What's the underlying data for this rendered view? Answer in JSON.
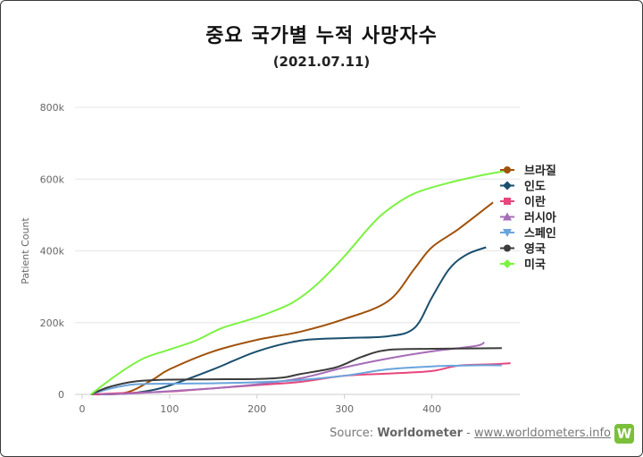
{
  "header": {
    "title": "중요 국가별 누적 사망자수",
    "subtitle": "(2021.07.11)"
  },
  "footer": {
    "source_prefix": "Source: ",
    "source_name": "Worldometer",
    "separator": " - ",
    "source_link": "www.worldometers.info",
    "logo_letter": "W"
  },
  "chart_data": {
    "type": "line",
    "title": "중요 국가별 누적 사망자수",
    "subtitle": "(2021.07.11)",
    "xlabel": "",
    "ylabel": "Patient Count",
    "xlim": [
      0,
      500
    ],
    "ylim": [
      0,
      800000
    ],
    "x_ticks": [
      0,
      100,
      200,
      300,
      400
    ],
    "x_tick_labels": [
      "0",
      "100",
      "200",
      "300",
      "400"
    ],
    "y_ticks": [
      0,
      200000,
      400000,
      600000,
      800000
    ],
    "y_tick_labels": [
      "0",
      "200k",
      "400k",
      "600k",
      "800k"
    ],
    "grid": "horizontal",
    "legend_position": "right",
    "series": [
      {
        "name": "브라질",
        "color": "#a0520a",
        "marker": "circle",
        "points": [
          [
            10,
            0
          ],
          [
            50,
            5000
          ],
          [
            80,
            40000
          ],
          [
            100,
            70000
          ],
          [
            150,
            120000
          ],
          [
            200,
            152000
          ],
          [
            250,
            175000
          ],
          [
            300,
            210000
          ],
          [
            350,
            260000
          ],
          [
            380,
            350000
          ],
          [
            400,
            410000
          ],
          [
            430,
            460000
          ],
          [
            470,
            535000
          ]
        ]
      },
      {
        "name": "인도",
        "color": "#1b4f6e",
        "marker": "diamond",
        "points": [
          [
            10,
            0
          ],
          [
            50,
            2000
          ],
          [
            80,
            12000
          ],
          [
            100,
            25000
          ],
          [
            150,
            70000
          ],
          [
            200,
            120000
          ],
          [
            250,
            150000
          ],
          [
            300,
            157000
          ],
          [
            350,
            162000
          ],
          [
            380,
            185000
          ],
          [
            400,
            270000
          ],
          [
            420,
            350000
          ],
          [
            440,
            390000
          ],
          [
            462,
            410000
          ]
        ]
      },
      {
        "name": "이란",
        "color": "#e8467c",
        "marker": "square",
        "points": [
          [
            10,
            0
          ],
          [
            50,
            4000
          ],
          [
            100,
            8000
          ],
          [
            150,
            17000
          ],
          [
            200,
            26000
          ],
          [
            250,
            35000
          ],
          [
            300,
            52000
          ],
          [
            350,
            58000
          ],
          [
            400,
            65000
          ],
          [
            430,
            80000
          ],
          [
            470,
            84000
          ],
          [
            490,
            87000
          ]
        ]
      },
      {
        "name": "러시아",
        "color": "#a56cb7",
        "marker": "triangle",
        "points": [
          [
            20,
            0
          ],
          [
            50,
            2000
          ],
          [
            100,
            9000
          ],
          [
            150,
            17000
          ],
          [
            200,
            28000
          ],
          [
            250,
            45000
          ],
          [
            300,
            75000
          ],
          [
            350,
            100000
          ],
          [
            400,
            120000
          ],
          [
            450,
            135000
          ],
          [
            460,
            145000
          ]
        ]
      },
      {
        "name": "스페인",
        "color": "#6aa4dc",
        "marker": "triangle-down",
        "points": [
          [
            10,
            0
          ],
          [
            30,
            15000
          ],
          [
            60,
            28000
          ],
          [
            100,
            30000
          ],
          [
            150,
            31000
          ],
          [
            200,
            34000
          ],
          [
            250,
            40000
          ],
          [
            300,
            52000
          ],
          [
            350,
            70000
          ],
          [
            400,
            78000
          ],
          [
            450,
            81000
          ],
          [
            480,
            81000
          ]
        ]
      },
      {
        "name": "영국",
        "color": "#3c3c3c",
        "marker": "circle",
        "points": [
          [
            10,
            0
          ],
          [
            30,
            20000
          ],
          [
            60,
            36000
          ],
          [
            100,
            41000
          ],
          [
            150,
            42000
          ],
          [
            200,
            43000
          ],
          [
            230,
            47000
          ],
          [
            250,
            57000
          ],
          [
            290,
            75000
          ],
          [
            320,
            105000
          ],
          [
            350,
            124000
          ],
          [
            400,
            127000
          ],
          [
            440,
            128000
          ],
          [
            480,
            129000
          ]
        ]
      },
      {
        "name": "미국",
        "color": "#7cf242",
        "marker": "diamond",
        "points": [
          [
            10,
            0
          ],
          [
            40,
            55000
          ],
          [
            70,
            100000
          ],
          [
            100,
            125000
          ],
          [
            130,
            150000
          ],
          [
            160,
            185000
          ],
          [
            200,
            215000
          ],
          [
            240,
            255000
          ],
          [
            270,
            310000
          ],
          [
            300,
            385000
          ],
          [
            330,
            470000
          ],
          [
            350,
            515000
          ],
          [
            380,
            560000
          ],
          [
            420,
            590000
          ],
          [
            460,
            612000
          ],
          [
            490,
            625000
          ]
        ]
      }
    ]
  }
}
